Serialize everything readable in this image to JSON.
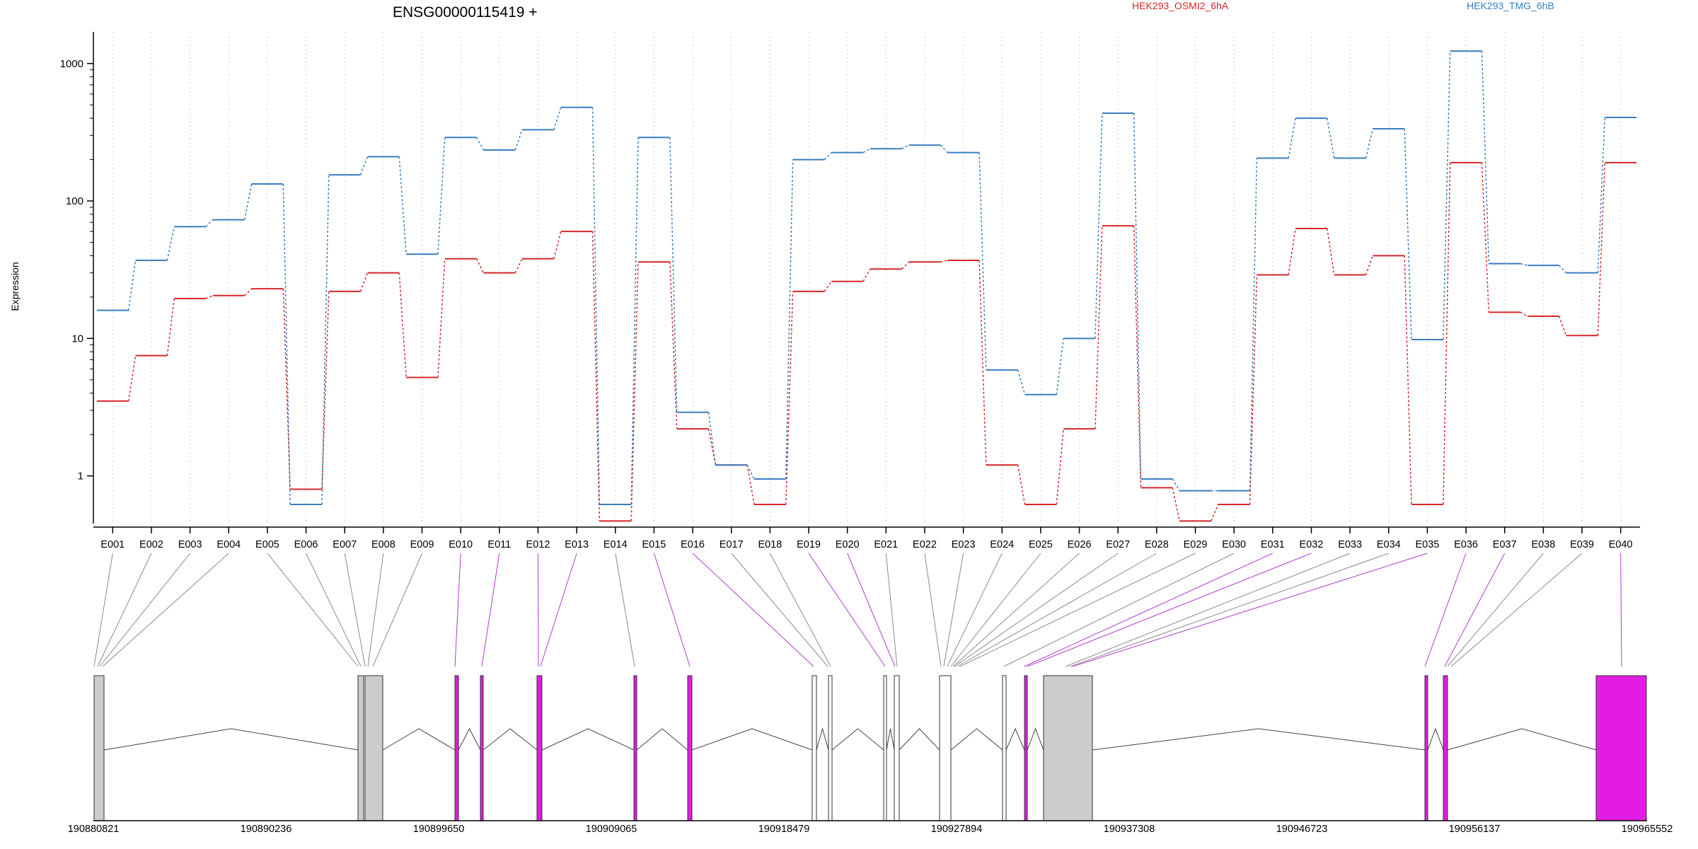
{
  "chart_data": {
    "type": "line",
    "title": "ENSG00000115419 +",
    "ylabel": "Expression",
    "xlabel": "",
    "yscale": "log",
    "ylim": [
      0.45,
      1700
    ],
    "yticks": [
      1,
      10,
      100,
      1000
    ],
    "grid": "vertical dotted",
    "legend": "top-right",
    "categories": [
      "E001",
      "E002",
      "E003",
      "E004",
      "E005",
      "E006",
      "E007",
      "E008",
      "E009",
      "E010",
      "E011",
      "E012",
      "E013",
      "E014",
      "E015",
      "E016",
      "E017",
      "E018",
      "E019",
      "E020",
      "E021",
      "E022",
      "E023",
      "E024",
      "E025",
      "E026",
      "E027",
      "E028",
      "E029",
      "E030",
      "E031",
      "E032",
      "E033",
      "E034",
      "E035",
      "E036",
      "E037",
      "E038",
      "E039",
      "E040"
    ],
    "series": [
      {
        "name": "HEK293_OSMI2_6hA",
        "color": "#d62728",
        "values": [
          3.5,
          7.5,
          19.5,
          20.5,
          23,
          0.8,
          22,
          30,
          5.2,
          38,
          30,
          38,
          60,
          0.47,
          36,
          2.2,
          1.2,
          0.62,
          22,
          26,
          32,
          36,
          37,
          1.2,
          0.62,
          2.2,
          66,
          0.82,
          0.47,
          0.62,
          29,
          63,
          29,
          40,
          0.62,
          190,
          15.5,
          14.5,
          10.5,
          190
        ]
      },
      {
        "name": "HEK293_TMG_6hB",
        "color": "#3a7dc2",
        "values": [
          16,
          37,
          65,
          73,
          133,
          0.62,
          155,
          210,
          41,
          290,
          235,
          330,
          480,
          0.62,
          290,
          2.9,
          1.2,
          0.95,
          200,
          225,
          240,
          255,
          225,
          5.9,
          3.9,
          10,
          435,
          0.95,
          0.78,
          0.78,
          205,
          400,
          205,
          335,
          9.8,
          1230,
          35,
          34,
          30,
          405
        ]
      }
    ],
    "genomic_axis": {
      "tick_labels": [
        "190880821",
        "190890236",
        "190899650",
        "190909065",
        "190918479",
        "190927894",
        "190937308",
        "190946723",
        "190956137",
        "190965552"
      ],
      "start": 190880821,
      "end": 190965552
    }
  }
}
